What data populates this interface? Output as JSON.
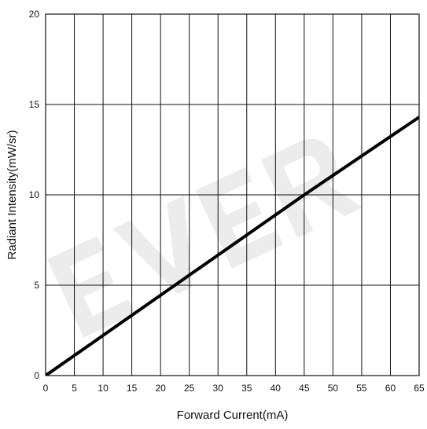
{
  "chart_data": {
    "type": "line",
    "title": "",
    "xlabel": "Forward Current(mA)",
    "ylabel": "Radiant Intensity(mW/sr)",
    "xlim": [
      0,
      65
    ],
    "ylim": [
      0,
      20
    ],
    "xticks": [
      0,
      5,
      10,
      15,
      20,
      25,
      30,
      35,
      40,
      45,
      50,
      55,
      60,
      65
    ],
    "yticks": [
      0,
      5,
      10,
      15,
      20
    ],
    "grid": true,
    "legend": "none",
    "series": [
      {
        "x": [
          0,
          45,
          65
        ],
        "y": [
          0,
          10,
          14.3
        ],
        "color": "#000000"
      }
    ],
    "watermark": "EVER"
  },
  "colors": {
    "line": "#000000",
    "grid": "#111111",
    "background": "#ffffff",
    "watermark": "#eaeaea"
  }
}
